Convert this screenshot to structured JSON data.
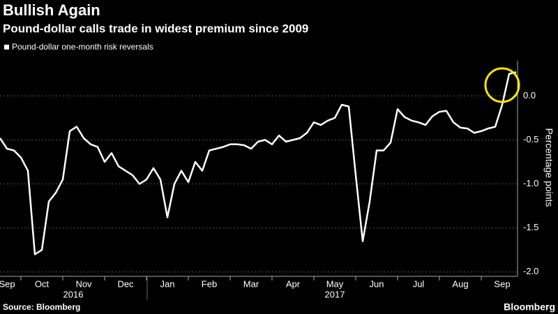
{
  "chart_data": {
    "type": "line",
    "title": "Bullish Again",
    "subtitle": "Pound-dollar calls trade in widest premium since 2009",
    "y_axis_label": "Percentage points",
    "source": "Source: Bloomberg",
    "brand": "Bloomberg",
    "year_labels": [
      "2016",
      "2017"
    ],
    "categories": [
      null,
      "Sep",
      null,
      null,
      null,
      null,
      "Oct",
      null,
      null,
      null,
      null,
      null,
      "Nov",
      null,
      null,
      null,
      null,
      null,
      "Dec",
      null,
      null,
      null,
      null,
      null,
      "Jan",
      null,
      null,
      null,
      null,
      null,
      "Feb",
      null,
      null,
      null,
      null,
      null,
      "Mar",
      null,
      null,
      null,
      null,
      null,
      "Apr",
      null,
      null,
      null,
      null,
      null,
      "May",
      null,
      null,
      null,
      null,
      null,
      "Jun",
      null,
      null,
      null,
      null,
      null,
      "Jul",
      null,
      null,
      null,
      null,
      null,
      "Aug",
      null,
      null,
      null,
      null,
      null,
      "Sep",
      null,
      null
    ],
    "series": [
      {
        "name": "Pound-dollar one-month risk reversals",
        "color": "#ffffff",
        "values": [
          -0.48,
          -0.6,
          -0.62,
          -0.7,
          -0.85,
          -1.8,
          -1.75,
          -1.2,
          -1.1,
          -0.95,
          -0.4,
          -0.35,
          -0.48,
          -0.55,
          -0.58,
          -0.75,
          -0.65,
          -0.8,
          -0.85,
          -0.9,
          -1.0,
          -0.95,
          -0.82,
          -0.95,
          -1.38,
          -1.0,
          -0.85,
          -0.98,
          -0.75,
          -0.85,
          -0.62,
          -0.6,
          -0.58,
          -0.55,
          -0.55,
          -0.56,
          -0.6,
          -0.52,
          -0.5,
          -0.55,
          -0.45,
          -0.52,
          -0.5,
          -0.48,
          -0.42,
          -0.3,
          -0.33,
          -0.28,
          -0.25,
          -0.1,
          -0.12,
          -0.9,
          -1.65,
          -1.2,
          -0.62,
          -0.62,
          -0.53,
          -0.15,
          -0.24,
          -0.28,
          -0.3,
          -0.33,
          -0.23,
          -0.18,
          -0.17,
          -0.3,
          -0.36,
          -0.37,
          -0.42,
          -0.4,
          -0.37,
          -0.35,
          -0.1,
          0.25,
          0.27
        ]
      }
    ],
    "ylim": [
      -2.05,
      0.4
    ],
    "yticks": [
      {
        "value": 0,
        "label": "0.0"
      },
      -0.5,
      {
        "value": -1,
        "label": "-1.0"
      },
      -1.5,
      {
        "value": -2,
        "label": "-2.0"
      }
    ],
    "grid": true,
    "highlight_color": "#ffe600"
  }
}
